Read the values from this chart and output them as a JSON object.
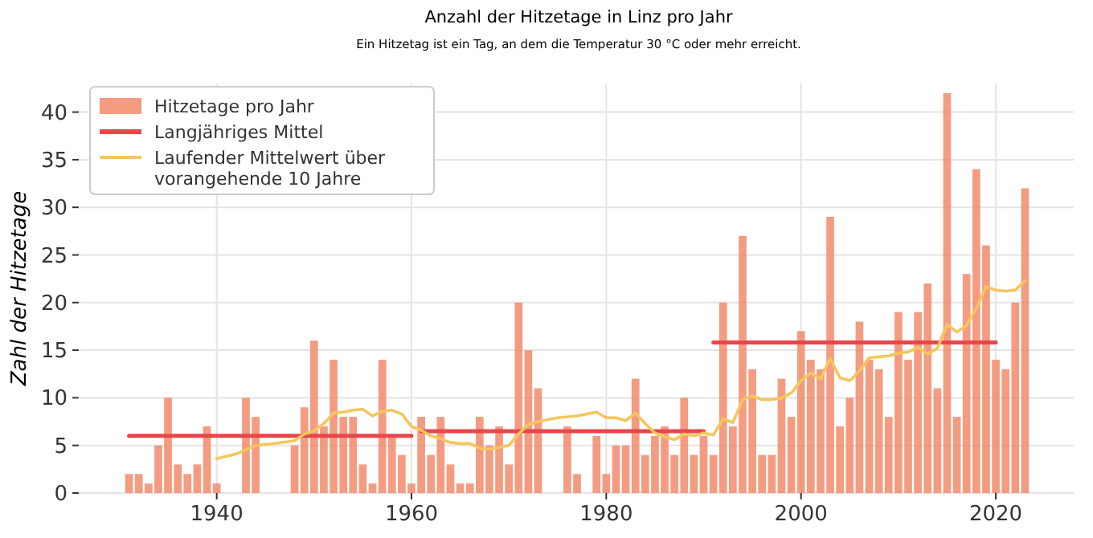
{
  "chart_data": {
    "type": "bar",
    "title": "Anzahl der Hitzetage in Linz pro Jahr",
    "subtitle": "Ein Hitzetag ist ein Tag, an dem die Temperatur 30 °C oder mehr erreicht.",
    "ylabel": "Zahl der Hitzetage",
    "xlim": [
      1926,
      2028
    ],
    "xticks": [
      1940,
      1960,
      1980,
      2000,
      2020
    ],
    "ylim": [
      0,
      43
    ],
    "yticks": [
      0,
      5,
      10,
      15,
      20,
      25,
      30,
      35,
      40
    ],
    "grid": true,
    "legend": "top left",
    "series": [
      {
        "name": "Hitzetage pro Jahr",
        "color": "#f28b6b",
        "x": [
          1931,
          1932,
          1933,
          1934,
          1935,
          1936,
          1937,
          1938,
          1939,
          1940,
          1943,
          1944,
          1948,
          1949,
          1950,
          1951,
          1952,
          1953,
          1954,
          1955,
          1956,
          1957,
          1958,
          1959,
          1960,
          1961,
          1962,
          1963,
          1964,
          1965,
          1966,
          1967,
          1968,
          1969,
          1970,
          1971,
          1972,
          1973,
          1976,
          1977,
          1979,
          1980,
          1981,
          1982,
          1983,
          1984,
          1985,
          1986,
          1987,
          1988,
          1989,
          1990,
          1991,
          1992,
          1993,
          1994,
          1995,
          1996,
          1997,
          1998,
          1999,
          2000,
          2001,
          2002,
          2003,
          2004,
          2005,
          2006,
          2007,
          2008,
          2009,
          2010,
          2011,
          2012,
          2013,
          2014,
          2015,
          2016,
          2017,
          2018,
          2019,
          2020,
          2021,
          2022,
          2023
        ],
        "values": [
          2,
          2,
          1,
          5,
          10,
          3,
          2,
          3,
          7,
          1,
          10,
          8,
          5,
          9,
          16,
          7,
          14,
          8,
          8,
          3,
          1,
          14,
          6,
          4,
          1,
          8,
          4,
          8,
          3,
          1,
          1,
          8,
          5,
          7,
          3,
          20,
          15,
          11,
          7,
          2,
          6,
          2,
          5,
          5,
          12,
          4,
          6,
          7,
          4,
          10,
          4,
          6,
          4,
          20,
          7,
          27,
          13,
          4,
          4,
          12,
          8,
          17,
          14,
          13,
          29,
          7,
          10,
          18,
          14,
          13,
          8,
          19,
          14,
          19,
          22,
          11,
          42,
          8,
          23,
          34,
          26,
          14,
          13,
          20,
          32
        ]
      },
      {
        "name": "Langjähriges Mittel",
        "type": "line",
        "color": "#e8464b",
        "x": [
          1931,
          1960,
          1960.5,
          1961,
          1990,
          1990.5,
          1991,
          2020
        ],
        "values": [
          6,
          6,
          null,
          6.5,
          6.5,
          null,
          15.8,
          15.8
        ]
      },
      {
        "name": "Laufender Mittelwert über vorangehende 10 Jahre",
        "type": "line",
        "color": "#f5c65c",
        "x": [
          1940,
          1942,
          1944,
          1946,
          1948,
          1949,
          1950,
          1951,
          1952,
          1953,
          1954,
          1955,
          1956,
          1957,
          1958,
          1959,
          1960,
          1961,
          1962,
          1963,
          1964,
          1965,
          1966,
          1967,
          1968,
          1969,
          1970,
          1971,
          1972,
          1973,
          1975,
          1977,
          1979,
          1980,
          1981,
          1982,
          1983,
          1984,
          1985,
          1986,
          1987,
          1988,
          1989,
          1990,
          1991,
          1992,
          1993,
          1994,
          1995,
          1996,
          1997,
          1998,
          1999,
          2000,
          2001,
          2002,
          2003,
          2004,
          2005,
          2006,
          2007,
          2008,
          2009,
          2010,
          2011,
          2012,
          2013,
          2014,
          2015,
          2016,
          2017,
          2018,
          2019,
          2020,
          2021,
          2022,
          2023
        ],
        "values": [
          3.6,
          4.1,
          5,
          5.2,
          5.5,
          6.2,
          6.5,
          7.3,
          8.4,
          8.5,
          8.7,
          8.8,
          8.1,
          8.6,
          8.7,
          8.3,
          7,
          6.6,
          6,
          5.7,
          5.3,
          5.2,
          5.2,
          4.7,
          4.6,
          4.8,
          5,
          6.2,
          7.2,
          7.5,
          7.9,
          8.1,
          8.5,
          7.9,
          7.9,
          7.6,
          8.4,
          7.3,
          6.3,
          5.9,
          5.6,
          6.2,
          6,
          6.3,
          6.1,
          7.8,
          7.4,
          9.8,
          10.2,
          9.8,
          9.8,
          10,
          10.5,
          11.8,
          12.6,
          12,
          14.1,
          12.1,
          11.8,
          12.8,
          14.2,
          14.3,
          14.4,
          14.7,
          14.8,
          15.3,
          14.6,
          15.2,
          17.7,
          16.9,
          17.6,
          19.4,
          21.7,
          21.3,
          21.2,
          21.3,
          22.3
        ]
      }
    ]
  }
}
